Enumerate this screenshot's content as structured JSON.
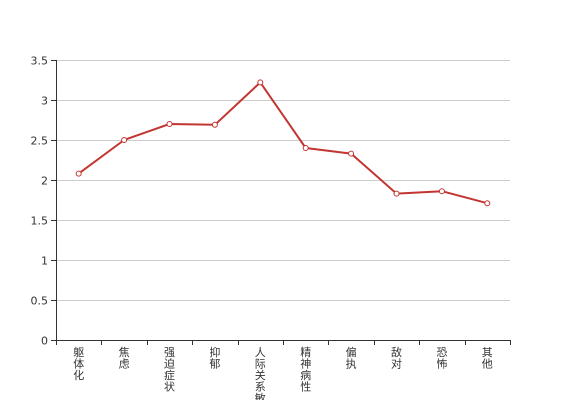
{
  "chart_data": {
    "type": "line",
    "title": "",
    "xlabel": "",
    "ylabel": "",
    "ylim": [
      0,
      3.5
    ],
    "y_ticks": [
      "0",
      "0.5",
      "1",
      "1.5",
      "2",
      "2.5",
      "3",
      "3.5"
    ],
    "grid": "horizontal",
    "categories": [
      "躯体化",
      "焦虑",
      "强迫症状",
      "抑郁",
      "人际关系敏感",
      "精神病性",
      "偏执",
      "敌对",
      "恐怖",
      "其他"
    ],
    "series": [
      {
        "values": [
          2.08,
          2.5,
          2.7,
          2.69,
          3.22,
          2.4,
          2.33,
          1.83,
          1.86,
          1.71
        ],
        "color": "#c23531"
      }
    ]
  }
}
